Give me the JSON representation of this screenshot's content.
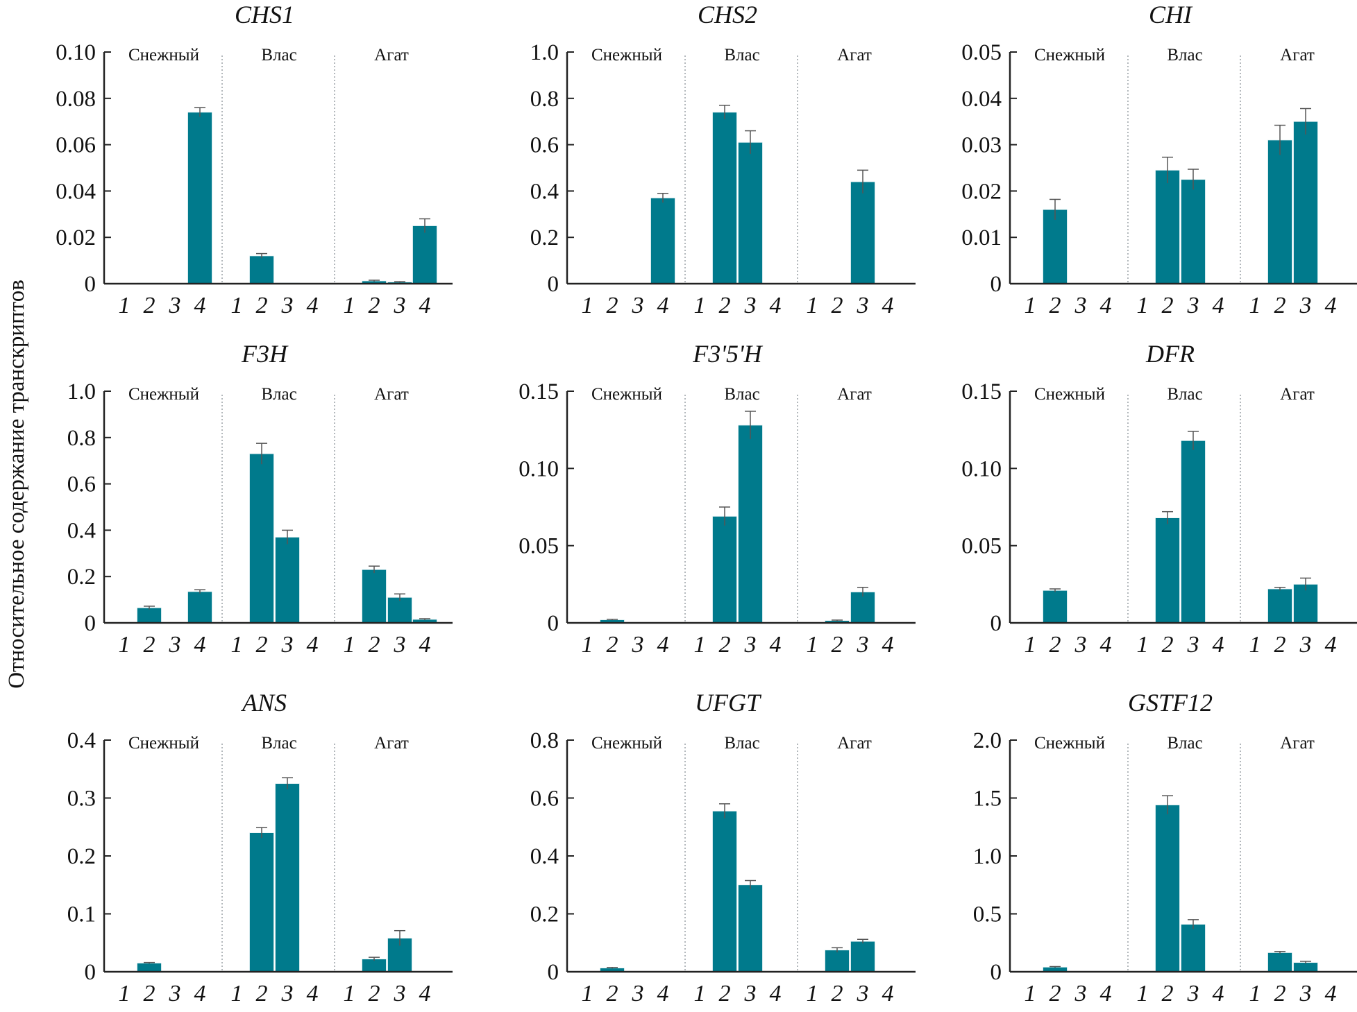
{
  "ylabel": "Относительное содержание транскриптов",
  "chart_data": [
    {
      "type": "bar",
      "title": "CHS1",
      "ylim": [
        0,
        0.1
      ],
      "yticks": [
        "0",
        "0.02",
        "0.04",
        "0.06",
        "0.08",
        "0.10"
      ],
      "ytick_values": [
        0,
        0.02,
        0.04,
        0.06,
        0.08,
        0.1
      ],
      "groups": [
        "Снежный",
        "Влас",
        "Агат"
      ],
      "categories": [
        "1",
        "2",
        "3",
        "4"
      ],
      "values": [
        [
          0,
          0.0003,
          0,
          0.074
        ],
        [
          0,
          0.012,
          0.0004,
          0
        ],
        [
          0,
          0.0012,
          0.0007,
          0.025
        ]
      ],
      "errors": [
        [
          0,
          0,
          0,
          0.002
        ],
        [
          0,
          0.001,
          0,
          0
        ],
        [
          0,
          0.0003,
          0.0002,
          0.003
        ]
      ]
    },
    {
      "type": "bar",
      "title": "CHS2",
      "ylim": [
        0,
        1.0
      ],
      "yticks": [
        "0",
        "0.2",
        "0.4",
        "0.6",
        "0.8",
        "1.0"
      ],
      "ytick_values": [
        0,
        0.2,
        0.4,
        0.6,
        0.8,
        1.0
      ],
      "groups": [
        "Снежный",
        "Влас",
        "Агат"
      ],
      "categories": [
        "1",
        "2",
        "3",
        "4"
      ],
      "values": [
        [
          0.003,
          0,
          0,
          0.37
        ],
        [
          0,
          0.74,
          0.61,
          0
        ],
        [
          0,
          0,
          0.44,
          0
        ]
      ],
      "errors": [
        [
          0,
          0,
          0,
          0.02
        ],
        [
          0,
          0.03,
          0.05,
          0
        ],
        [
          0,
          0,
          0.05,
          0
        ]
      ]
    },
    {
      "type": "bar",
      "title": "CHI",
      "ylim": [
        0,
        0.05
      ],
      "yticks": [
        "0",
        "0.01",
        "0.02",
        "0.03",
        "0.04",
        "0.05"
      ],
      "ytick_values": [
        0,
        0.01,
        0.02,
        0.03,
        0.04,
        0.05
      ],
      "groups": [
        "Снежный",
        "Влас",
        "Агат"
      ],
      "categories": [
        "1",
        "2",
        "3",
        "4"
      ],
      "values": [
        [
          0,
          0.016,
          0,
          0
        ],
        [
          0,
          0.0245,
          0.0225,
          0
        ],
        [
          0,
          0.031,
          0.035,
          0
        ]
      ],
      "errors": [
        [
          0,
          0.0022,
          0,
          0
        ],
        [
          0,
          0.0028,
          0.0022,
          0
        ],
        [
          0,
          0.0032,
          0.0028,
          0
        ]
      ]
    },
    {
      "type": "bar",
      "title": "F3H",
      "ylim": [
        0,
        1.0
      ],
      "yticks": [
        "0",
        "0.2",
        "0.4",
        "0.6",
        "0.8",
        "1.0"
      ],
      "ytick_values": [
        0,
        0.2,
        0.4,
        0.6,
        0.8,
        1.0
      ],
      "groups": [
        "Снежный",
        "Влас",
        "Агат"
      ],
      "categories": [
        "1",
        "2",
        "3",
        "4"
      ],
      "values": [
        [
          0.002,
          0.065,
          0,
          0.135
        ],
        [
          0,
          0.73,
          0.37,
          0.002
        ],
        [
          0.001,
          0.23,
          0.11,
          0.015
        ]
      ],
      "errors": [
        [
          0,
          0.007,
          0,
          0.008
        ],
        [
          0,
          0.045,
          0.03,
          0
        ],
        [
          0,
          0.015,
          0.015,
          0.003
        ]
      ]
    },
    {
      "type": "bar",
      "title": "F3'5'H",
      "ylim": [
        0,
        0.15
      ],
      "yticks": [
        "0",
        "0.05",
        "0.10",
        "0.15"
      ],
      "ytick_values": [
        0,
        0.05,
        0.1,
        0.15
      ],
      "groups": [
        "Снежный",
        "Влас",
        "Агат"
      ],
      "categories": [
        "1",
        "2",
        "3",
        "4"
      ],
      "values": [
        [
          0,
          0.002,
          0,
          0
        ],
        [
          0,
          0.069,
          0.128,
          0
        ],
        [
          0,
          0.0015,
          0.02,
          0
        ]
      ],
      "errors": [
        [
          0,
          0.0003,
          0,
          0
        ],
        [
          0,
          0.006,
          0.009,
          0
        ],
        [
          0,
          0.0003,
          0.003,
          0
        ]
      ]
    },
    {
      "type": "bar",
      "title": "DFR",
      "ylim": [
        0,
        0.15
      ],
      "yticks": [
        "0",
        "0.05",
        "0.10",
        "0.15"
      ],
      "ytick_values": [
        0,
        0.05,
        0.1,
        0.15
      ],
      "groups": [
        "Снежный",
        "Влас",
        "Агат"
      ],
      "categories": [
        "1",
        "2",
        "3",
        "4"
      ],
      "values": [
        [
          0,
          0.021,
          0,
          0
        ],
        [
          0,
          0.068,
          0.118,
          0
        ],
        [
          0,
          0.022,
          0.025,
          0
        ]
      ],
      "errors": [
        [
          0,
          0.001,
          0,
          0
        ],
        [
          0,
          0.004,
          0.006,
          0
        ],
        [
          0,
          0.001,
          0.004,
          0
        ]
      ]
    },
    {
      "type": "bar",
      "title": "ANS",
      "ylim": [
        0,
        0.4
      ],
      "yticks": [
        "0",
        "0.1",
        "0.2",
        "0.3",
        "0.4"
      ],
      "ytick_values": [
        0,
        0.1,
        0.2,
        0.3,
        0.4
      ],
      "groups": [
        "Снежный",
        "Влас",
        "Агат"
      ],
      "categories": [
        "1",
        "2",
        "3",
        "4"
      ],
      "values": [
        [
          0,
          0.015,
          0,
          0
        ],
        [
          0,
          0.24,
          0.325,
          0
        ],
        [
          0,
          0.022,
          0.058,
          0
        ]
      ],
      "errors": [
        [
          0,
          0.001,
          0,
          0
        ],
        [
          0,
          0.009,
          0.01,
          0
        ],
        [
          0,
          0.003,
          0.013,
          0
        ]
      ]
    },
    {
      "type": "bar",
      "title": "UFGT",
      "ylim": [
        0,
        0.8
      ],
      "yticks": [
        "0",
        "0.2",
        "0.4",
        "0.6",
        "0.8"
      ],
      "ytick_values": [
        0,
        0.2,
        0.4,
        0.6,
        0.8
      ],
      "groups": [
        "Снежный",
        "Влас",
        "Агат"
      ],
      "categories": [
        "1",
        "2",
        "3",
        "4"
      ],
      "values": [
        [
          0,
          0.013,
          0,
          0
        ],
        [
          0,
          0.555,
          0.3,
          0
        ],
        [
          0,
          0.075,
          0.105,
          0
        ]
      ],
      "errors": [
        [
          0,
          0.002,
          0,
          0
        ],
        [
          0,
          0.025,
          0.015,
          0
        ],
        [
          0,
          0.008,
          0.007,
          0
        ]
      ]
    },
    {
      "type": "bar",
      "title": "GSTF12",
      "ylim": [
        0,
        2.0
      ],
      "yticks": [
        "0",
        "0.5",
        "1.0",
        "1.5",
        "2.0"
      ],
      "ytick_values": [
        0,
        0.5,
        1.0,
        1.5,
        2.0
      ],
      "groups": [
        "Снежный",
        "Влас",
        "Агат"
      ],
      "categories": [
        "1",
        "2",
        "3",
        "4"
      ],
      "values": [
        [
          0,
          0.04,
          0,
          0
        ],
        [
          0,
          1.44,
          0.41,
          0
        ],
        [
          0,
          0.165,
          0.08,
          0
        ]
      ],
      "errors": [
        [
          0,
          0.005,
          0,
          0
        ],
        [
          0,
          0.08,
          0.04,
          0
        ],
        [
          0,
          0.01,
          0.01,
          0
        ]
      ]
    }
  ],
  "colors": {
    "bar": "#007a8c",
    "axis": "#222222",
    "separator": "#9aa0a6",
    "error": "#555555"
  }
}
